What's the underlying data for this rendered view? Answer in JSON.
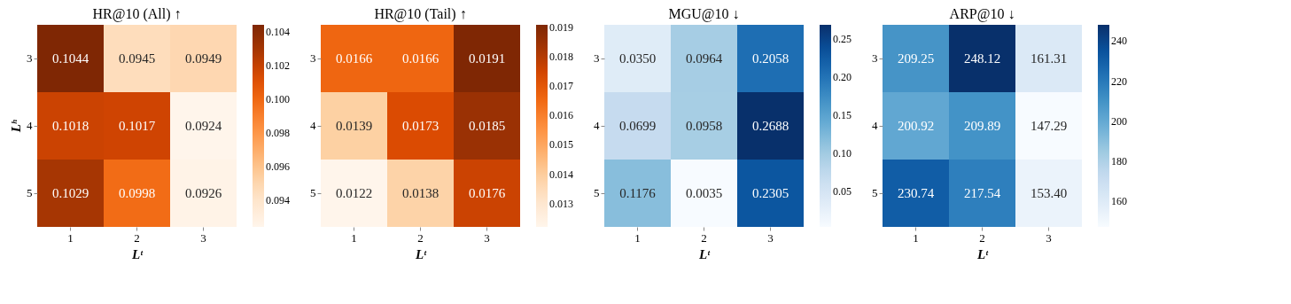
{
  "chart_data": [
    {
      "type": "heatmap",
      "title": "HR@10 (All) ↑",
      "xlabel": "Lᵗ",
      "ylabel": "Lʰ",
      "categories": [
        "1",
        "2",
        "3"
      ],
      "y_categories": [
        "3",
        "4",
        "5"
      ],
      "cells": [
        [
          0.1044,
          0.0945,
          0.0949
        ],
        [
          0.1018,
          0.1017,
          0.0924
        ],
        [
          0.1029,
          0.0998,
          0.0926
        ]
      ],
      "cell_labels": [
        [
          "0.1044",
          "0.0945",
          "0.0949"
        ],
        [
          "0.1018",
          "0.1017",
          "0.0924"
        ],
        [
          "0.1029",
          "0.0998",
          "0.0926"
        ]
      ],
      "clim": [
        0.0924,
        0.1044
      ],
      "cticks": [
        0.094,
        0.096,
        0.098,
        {
          "value": 0.1,
          "label": "0.100"
        },
        0.102,
        0.104
      ],
      "grid": false
    },
    {
      "type": "heatmap",
      "title": "HR@10 (Tail) ↑",
      "xlabel": "Lᵗ",
      "categories": [
        "1",
        "2",
        "3"
      ],
      "y_categories": [
        "3",
        "4",
        "5"
      ],
      "cells": [
        [
          0.0166,
          0.0166,
          0.0191
        ],
        [
          0.0139,
          0.0173,
          0.0185
        ],
        [
          0.0122,
          0.0138,
          0.0176
        ]
      ],
      "cell_labels": [
        [
          "0.0166",
          "0.0166",
          "0.0191"
        ],
        [
          "0.0139",
          "0.0173",
          "0.0185"
        ],
        [
          "0.0122",
          "0.0138",
          "0.0176"
        ]
      ],
      "clim": [
        0.0122,
        0.0191
      ],
      "cticks": [
        0.013,
        0.014,
        0.015,
        0.016,
        0.017,
        0.018,
        0.019
      ],
      "grid": false
    },
    {
      "type": "heatmap",
      "title": "MGU@10 ↓",
      "xlabel": "Lᵗ",
      "categories": [
        "1",
        "2",
        "3"
      ],
      "y_categories": [
        "3",
        "4",
        "5"
      ],
      "cells": [
        [
          0.035,
          0.0964,
          0.2058
        ],
        [
          0.0699,
          0.0958,
          0.2688
        ],
        [
          0.1176,
          0.0035,
          0.2305
        ]
      ],
      "cell_labels": [
        [
          "0.0350",
          "0.0964",
          "0.2058"
        ],
        [
          "0.0699",
          "0.0958",
          "0.2688"
        ],
        [
          "0.1176",
          "0.0035",
          "0.2305"
        ]
      ],
      "clim": [
        0.0035,
        0.2688
      ],
      "cticks": [
        {
          "value": 0.05,
          "label": "0.05"
        },
        {
          "value": 0.1,
          "label": "0.10"
        },
        {
          "value": 0.15,
          "label": "0.15"
        },
        {
          "value": 0.2,
          "label": "0.20"
        },
        {
          "value": 0.25,
          "label": "0.25"
        }
      ],
      "grid": false
    },
    {
      "type": "heatmap",
      "title": "ARP@10 ↓",
      "xlabel": "Lᵗ",
      "categories": [
        "1",
        "2",
        "3"
      ],
      "y_categories": [
        "3",
        "4",
        "5"
      ],
      "cells": [
        [
          209.25,
          248.12,
          161.31
        ],
        [
          200.92,
          209.89,
          147.29
        ],
        [
          230.74,
          217.54,
          153.4
        ]
      ],
      "cell_labels": [
        [
          "209.25",
          "248.12",
          "161.31"
        ],
        [
          "200.92",
          "209.89",
          "147.29"
        ],
        [
          "230.74",
          "217.54",
          "153.40"
        ]
      ],
      "clim": [
        147.29,
        248.12
      ],
      "cticks": [
        160,
        180,
        200,
        220,
        240
      ],
      "grid": false
    }
  ]
}
